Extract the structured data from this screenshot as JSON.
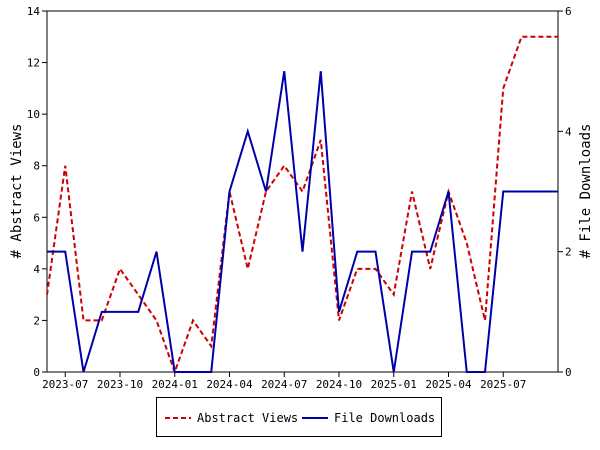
{
  "chart_data": {
    "type": "line",
    "x": [
      "2023-06",
      "2023-07",
      "2023-08",
      "2023-09",
      "2023-10",
      "2023-11",
      "2023-12",
      "2024-01",
      "2024-02",
      "2024-03",
      "2024-04",
      "2024-05",
      "2024-06",
      "2024-07",
      "2024-08",
      "2024-09",
      "2024-10",
      "2024-11",
      "2024-12",
      "2025-01",
      "2025-02",
      "2025-03",
      "2025-04",
      "2025-05",
      "2025-06",
      "2025-07",
      "2025-08",
      "2025-09",
      "2025-10"
    ],
    "xticks": [
      "2023-07",
      "2023-10",
      "2024-01",
      "2024-04",
      "2024-07",
      "2024-10",
      "2025-01",
      "2025-04",
      "2025-07"
    ],
    "y_left_label": "# Abstract Views",
    "y_right_label": "# File Downloads",
    "y_left_range": [
      0,
      14
    ],
    "y_right_range": [
      0,
      6
    ],
    "y_left_ticks": [
      "0",
      "2",
      "4",
      "6",
      "8",
      "10",
      "12",
      "14"
    ],
    "y_right_ticks": [
      "0",
      "2",
      "4",
      "6"
    ],
    "grid": false,
    "legend_position": "bottom",
    "series": [
      {
        "name": "Abstract Views",
        "axis": "left",
        "color": "#cc0000",
        "dash": "dashed",
        "values": [
          3,
          8,
          2,
          2,
          4,
          3,
          2,
          0,
          2,
          1,
          7,
          4,
          7,
          8,
          7,
          9,
          2,
          4,
          4,
          3,
          7,
          4,
          7,
          5,
          2,
          11,
          13,
          13,
          13
        ]
      },
      {
        "name": "File Downloads",
        "axis": "right",
        "color": "#0000aa",
        "dash": "solid",
        "values": [
          2,
          2,
          0,
          1,
          1,
          1,
          2,
          0,
          0,
          0,
          3,
          4,
          3,
          5,
          2,
          5,
          1,
          2,
          2,
          0,
          2,
          2,
          3,
          0,
          0,
          3,
          3,
          3,
          3
        ]
      }
    ]
  }
}
